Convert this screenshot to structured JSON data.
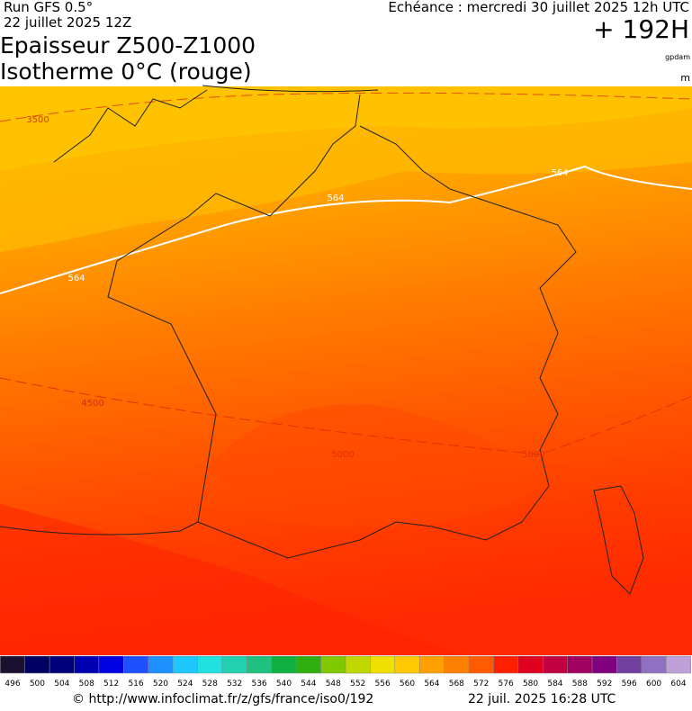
{
  "header": {
    "run": "Run GFS 0.5°",
    "run_date": "22 juillet 2025 12Z",
    "valid": "Echéance : mercredi 30 juillet 2025 12h UTC",
    "lead": "+ 192H",
    "title_line1": "Epaisseur Z500-Z1000",
    "title_line2": "Isotherme 0°C (rouge)",
    "unit_thickness": "gpdam",
    "unit_iso": "m"
  },
  "map": {
    "contour_labels": [
      3500,
      564,
      564,
      564,
      4500,
      5000,
      5000
    ]
  },
  "colorbar": {
    "values": [
      496,
      500,
      504,
      508,
      512,
      516,
      520,
      524,
      528,
      532,
      536,
      540,
      544,
      548,
      552,
      556,
      560,
      564,
      568,
      572,
      576,
      580,
      584,
      588,
      592,
      596,
      600,
      604
    ],
    "colors": [
      "#1a1030",
      "#000060",
      "#00007a",
      "#0000b0",
      "#0000e0",
      "#1e50ff",
      "#1e90ff",
      "#1ec8ff",
      "#20e0e0",
      "#20d0b0",
      "#20c080",
      "#10b040",
      "#30b010",
      "#80c800",
      "#c0d800",
      "#f0e000",
      "#ffc800",
      "#ffa000",
      "#ff8000",
      "#ff5a00",
      "#ff2000",
      "#e00020",
      "#c00040",
      "#a00060",
      "#800080",
      "#7040a0",
      "#9070c0",
      "#c0a0d8"
    ]
  },
  "footer": {
    "source": "© http://www.infoclimat.fr/z/gfs/france/iso0/192",
    "generated": "22 juil. 2025 16:28 UTC"
  }
}
